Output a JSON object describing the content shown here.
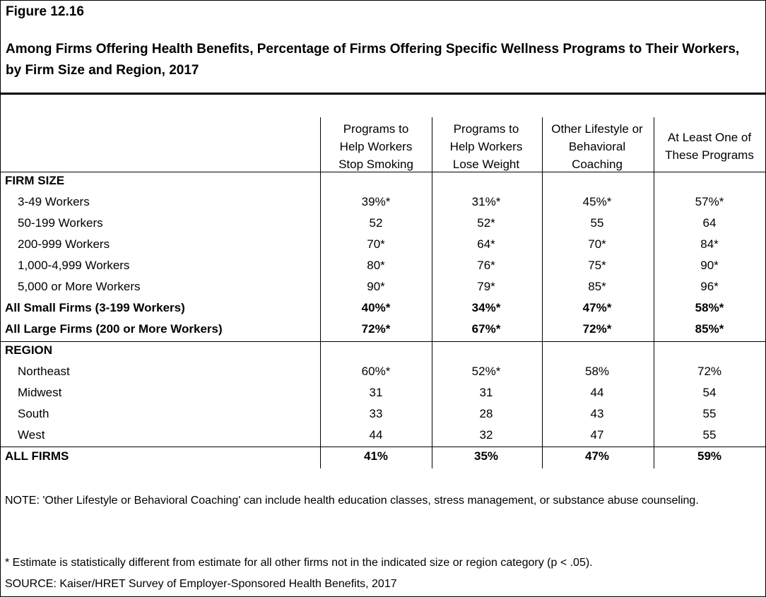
{
  "figure_label": "Figure 12.16",
  "title": "Among Firms Offering Health Benefits, Percentage of Firms Offering Specific Wellness Programs to Their Workers, by Firm Size and Region, 2017",
  "table": {
    "columns": [
      [
        "Programs to",
        "Help Workers",
        "Stop Smoking"
      ],
      [
        "Programs to",
        "Help Workers",
        "Lose Weight"
      ],
      [
        "Other Lifestyle or",
        "Behavioral",
        "Coaching"
      ],
      [
        "At Least One of",
        "These Programs"
      ]
    ],
    "rows": [
      {
        "label": "FIRM SIZE",
        "style": "section",
        "values": [
          "",
          "",
          "",
          ""
        ]
      },
      {
        "label": "3-49 Workers",
        "style": "indent",
        "values": [
          "39%*",
          "31%*",
          "45%*",
          "57%*"
        ]
      },
      {
        "label": "50-199 Workers",
        "style": "indent",
        "values": [
          "52",
          "52*",
          "55",
          "64"
        ]
      },
      {
        "label": "200-999 Workers",
        "style": "indent",
        "values": [
          "70*",
          "64*",
          "70*",
          "84*"
        ]
      },
      {
        "label": "1,000-4,999 Workers",
        "style": "indent",
        "values": [
          "80*",
          "76*",
          "75*",
          "90*"
        ]
      },
      {
        "label": "5,000 or More Workers",
        "style": "indent",
        "values": [
          "90*",
          "79*",
          "85*",
          "96*"
        ]
      },
      {
        "label": "All Small Firms (3-199 Workers)",
        "style": "bold",
        "values": [
          "40%*",
          "34%*",
          "47%*",
          "58%*"
        ]
      },
      {
        "label": "All Large Firms (200 or More Workers)",
        "style": "bold",
        "values": [
          "72%*",
          "67%*",
          "72%*",
          "85%*"
        ]
      },
      {
        "label": "REGION",
        "style": "section",
        "values": [
          "",
          "",
          "",
          ""
        ]
      },
      {
        "label": "Northeast",
        "style": "indent",
        "values": [
          "60%*",
          "52%*",
          "58%",
          "72%"
        ]
      },
      {
        "label": "Midwest",
        "style": "indent",
        "values": [
          "31",
          "31",
          "44",
          "54"
        ]
      },
      {
        "label": "South",
        "style": "indent",
        "values": [
          "33",
          "28",
          "43",
          "55"
        ]
      },
      {
        "label": "West",
        "style": "indent",
        "values": [
          "44",
          "32",
          "47",
          "55"
        ]
      },
      {
        "label": "ALL FIRMS",
        "style": "bold",
        "values": [
          "41%",
          "35%",
          "47%",
          "59%"
        ]
      }
    ]
  },
  "notes": {
    "note": "NOTE: 'Other Lifestyle or Behavioral Coaching' can include health education classes, stress management, or substance abuse counseling.",
    "asterisk": "* Estimate is statistically different from estimate for all other firms not in the indicated size or region category (p < .05).",
    "source": "SOURCE: Kaiser/HRET Survey of Employer-Sponsored Health Benefits, 2017"
  }
}
